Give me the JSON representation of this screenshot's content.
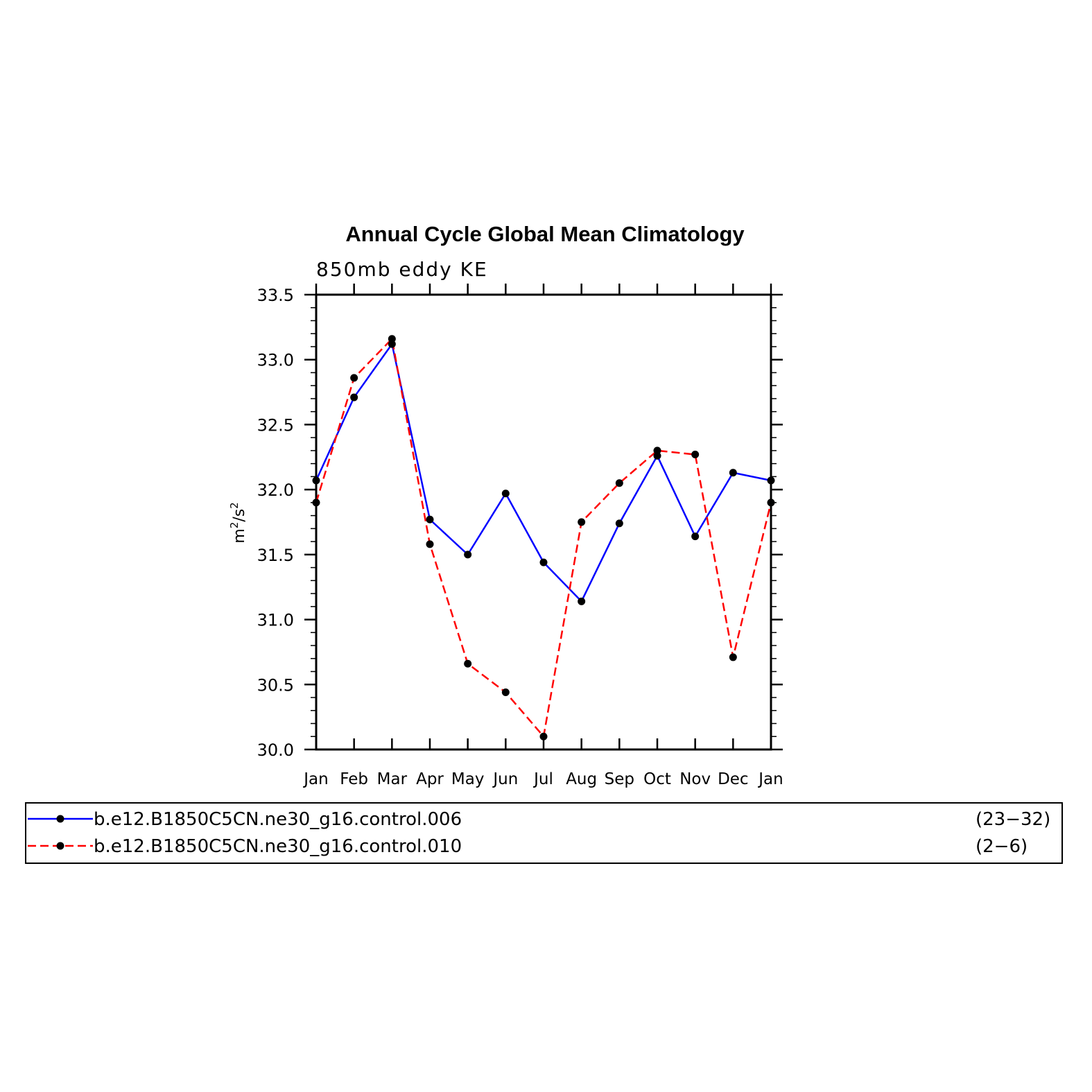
{
  "chart_data": {
    "type": "line",
    "title": "Annual Cycle Global Mean Climatology",
    "subtitle": "850mb eddy KE",
    "ylabel_base": "m",
    "ylabel_sup": "2",
    "ylabel_mid": "/s",
    "ylabel_sup2": "2",
    "categories": [
      "Jan",
      "Feb",
      "Mar",
      "Apr",
      "May",
      "Jun",
      "Jul",
      "Aug",
      "Sep",
      "Oct",
      "Nov",
      "Dec",
      "Jan"
    ],
    "ylim": [
      30.0,
      33.5
    ],
    "yticks": [
      "30.0",
      "30.5",
      "31.0",
      "31.5",
      "32.0",
      "32.5",
      "33.0",
      "33.5"
    ],
    "series": [
      {
        "name": "b.e12.B1850C5CN.ne30_g16.control.006",
        "range": "(23−32)",
        "color": "#0000ff",
        "dash": "solid",
        "values": [
          32.07,
          32.71,
          33.12,
          31.77,
          31.5,
          31.97,
          31.44,
          31.14,
          31.74,
          32.26,
          31.64,
          32.13,
          32.07
        ]
      },
      {
        "name": "b.e12.B1850C5CN.ne30_g16.control.010",
        "range": "(2−6)",
        "color": "#ff0000",
        "dash": "dashed",
        "values": [
          31.9,
          32.86,
          33.16,
          31.58,
          30.66,
          30.44,
          30.1,
          31.75,
          32.05,
          32.3,
          32.27,
          30.71,
          31.9
        ]
      }
    ],
    "marker_color": "#000000",
    "grid": false,
    "legend_position": "bottom"
  }
}
